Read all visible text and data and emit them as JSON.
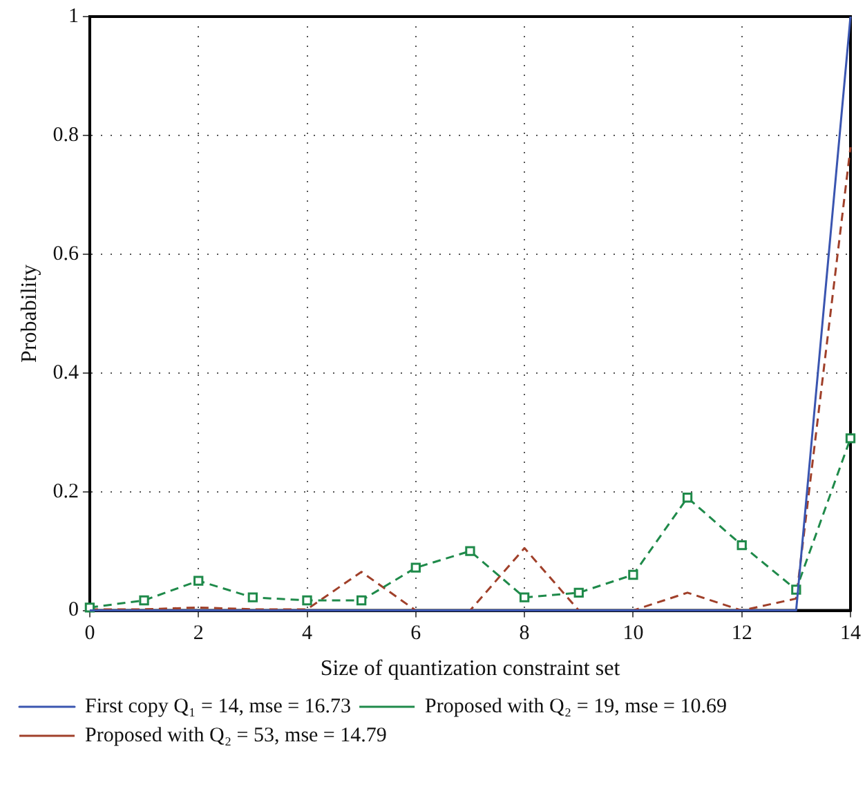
{
  "chart_data": {
    "type": "line",
    "xlabel": "Size of quantization constraint set",
    "ylabel": "Probability",
    "x": [
      0,
      1,
      2,
      3,
      4,
      5,
      6,
      7,
      8,
      9,
      10,
      11,
      12,
      13,
      14
    ],
    "xlim": [
      0,
      14
    ],
    "xticks": [
      0,
      2,
      4,
      6,
      8,
      10,
      12,
      14
    ],
    "ylim": [
      0,
      1
    ],
    "yticks": [
      0,
      0.2,
      0.4,
      0.6,
      0.8,
      1
    ],
    "grid": true,
    "legend": "bottom",
    "series": [
      {
        "name": "First copy Q₁ = 14, mse = 16.73",
        "color": "#3a55b0",
        "line_style": "solid",
        "marker": "none",
        "values": [
          0,
          0,
          0,
          0,
          0,
          0,
          0,
          0,
          0,
          0,
          0,
          0,
          0,
          0,
          1
        ]
      },
      {
        "name": "Proposed with Q₂ = 19, mse = 10.69",
        "color": "#1f8a4a",
        "line_style": "dashed",
        "marker": "square",
        "values": [
          0.005,
          0.017,
          0.05,
          0.022,
          0.017,
          0.017,
          0.072,
          0.1,
          0.022,
          0.03,
          0.06,
          0.19,
          0.11,
          0.035,
          0.29
        ]
      },
      {
        "name": "Proposed with Q₂ = 53, mse = 14.79",
        "color": "#a0402a",
        "line_style": "dashed",
        "marker": "none",
        "values": [
          0.002,
          0.002,
          0.005,
          0.002,
          0.002,
          0.065,
          0,
          0,
          0.105,
          0,
          0,
          0.03,
          0,
          0.02,
          0.78
        ]
      }
    ]
  }
}
